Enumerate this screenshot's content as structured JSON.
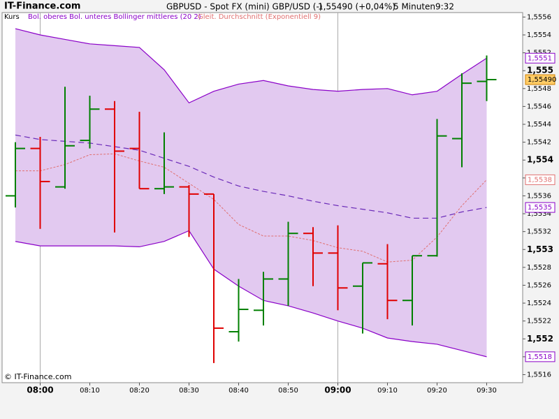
{
  "chart_data": {
    "type": "ohlc",
    "brand": "IT-Finance.com",
    "title": "GBPUSD - Spot FX (mini) GBP/USD (-)",
    "last_quote": "1,55490 (+0,04%)",
    "interval": "5 Minuten",
    "time": "9:32",
    "watermark": "© IT-Finance.com",
    "categories": [
      null,
      "08:00",
      null,
      "08:10",
      null,
      "08:20",
      null,
      "08:30",
      null,
      "08:40",
      null,
      "08:50",
      null,
      "09:00",
      null,
      "09:10",
      null,
      "09:20",
      null,
      "09:30"
    ],
    "price": {
      "name": "Kurs",
      "up_color": "#008000",
      "down_color": "#e00000",
      "open": [
        1.5536,
        1.55413,
        1.5537,
        1.55422,
        1.55457,
        1.55413,
        1.55368,
        1.5537,
        1.55362,
        1.55208,
        1.55232,
        1.55267,
        1.55318,
        1.55296,
        1.55259,
        1.55284,
        1.55243,
        1.55293,
        1.55424,
        1.55488
      ],
      "high": [
        1.5542,
        1.55426,
        1.55482,
        1.55472,
        1.55466,
        1.55454,
        1.55431,
        1.55372,
        1.55362,
        1.55267,
        1.55275,
        1.55331,
        1.55325,
        1.55327,
        1.55285,
        1.55306,
        1.55293,
        1.55446,
        1.55497,
        1.55517
      ],
      "low": [
        1.55347,
        1.55323,
        1.55368,
        1.55413,
        1.55319,
        1.55368,
        1.55362,
        1.55314,
        1.55173,
        1.55197,
        1.55215,
        1.55237,
        1.55259,
        1.55232,
        1.55206,
        1.55222,
        1.55215,
        1.55292,
        1.55392,
        1.55466
      ],
      "close": [
        1.55413,
        1.55376,
        1.55416,
        1.55457,
        1.5541,
        1.55368,
        1.5537,
        1.55362,
        1.55212,
        1.55233,
        1.55267,
        1.55318,
        1.55296,
        1.55257,
        1.55285,
        1.55243,
        1.55293,
        1.55427,
        1.55486,
        1.5549
      ],
      "value_labels": [
        null,
        null,
        null,
        null,
        null,
        null,
        null,
        null,
        null,
        null,
        null,
        null,
        null,
        null,
        null,
        null,
        null,
        null,
        null,
        "1,55490"
      ]
    },
    "bollinger": {
      "name": "Bol. oberes Bol. unteres Bollinger mittleres (20 2)",
      "color": "#8a00c8",
      "middle_color": "#6a2ab8",
      "fill": "#e2c9f0",
      "upper": [
        1.55547,
        1.5554,
        1.55535,
        1.5553,
        1.55528,
        1.55526,
        1.55501,
        1.55464,
        1.55477,
        1.55485,
        1.55489,
        1.55483,
        1.55479,
        1.55477,
        1.55479,
        1.5548,
        1.55473,
        1.55477,
        1.55496,
        1.55514
      ],
      "upper_labels": [
        null,
        null,
        null,
        null,
        null,
        null,
        null,
        null,
        null,
        null,
        null,
        null,
        null,
        null,
        null,
        null,
        null,
        null,
        null,
        "1,5551"
      ],
      "lower": [
        1.55309,
        1.55304,
        1.55304,
        1.55304,
        1.55304,
        1.55303,
        1.55309,
        1.55321,
        1.55278,
        1.55259,
        1.55243,
        1.55237,
        1.55229,
        1.5522,
        1.55212,
        1.55201,
        1.55197,
        1.55194,
        1.55187,
        1.5518
      ],
      "lower_labels": [
        null,
        null,
        null,
        null,
        null,
        null,
        null,
        null,
        null,
        null,
        null,
        null,
        null,
        null,
        null,
        null,
        null,
        null,
        null,
        "1,5518"
      ],
      "middle": [
        1.55428,
        1.55423,
        1.55421,
        1.55419,
        1.55415,
        1.55411,
        1.55402,
        1.55393,
        1.55381,
        1.55371,
        1.55365,
        1.5536,
        1.55354,
        1.55349,
        1.55345,
        1.55341,
        1.55335,
        1.55335,
        1.55342,
        1.55347
      ],
      "middle_labels": [
        null,
        null,
        null,
        null,
        null,
        null,
        null,
        null,
        null,
        null,
        null,
        null,
        null,
        null,
        null,
        null,
        null,
        null,
        null,
        "1,5535"
      ]
    },
    "ema": {
      "name": "Gleit. Durchschnitt (Exponentiell 9)",
      "color": "#e07070",
      "values": [
        1.55388,
        1.55388,
        1.55395,
        1.55406,
        1.55407,
        1.55399,
        1.55392,
        1.55374,
        1.55356,
        1.55328,
        1.55315,
        1.55315,
        1.5531,
        1.55302,
        1.55298,
        1.55286,
        1.55288,
        1.55314,
        1.55349,
        1.55378
      ],
      "value_labels": [
        null,
        null,
        null,
        null,
        null,
        null,
        null,
        null,
        null,
        null,
        null,
        null,
        null,
        null,
        null,
        null,
        null,
        null,
        null,
        "1,5538"
      ]
    },
    "ylim": [
      1.55151,
      1.55565
    ],
    "yticks": [
      {
        "value": 1.5516,
        "label": "1,5516"
      },
      {
        "value": 1.5518,
        "label": "1,5518"
      },
      {
        "value": 1.552,
        "label": "1,552"
      },
      {
        "value": 1.5522,
        "label": "1,5522"
      },
      {
        "value": 1.5524,
        "label": "1,5524"
      },
      {
        "value": 1.5526,
        "label": "1,5526"
      },
      {
        "value": 1.5528,
        "label": "1,5528"
      },
      {
        "value": 1.553,
        "label": "1,553"
      },
      {
        "value": 1.5532,
        "label": "1,5532"
      },
      {
        "value": 1.5534,
        "label": "1,5534"
      },
      {
        "value": 1.5536,
        "label": "1,5536"
      },
      {
        "value": 1.5538,
        "label": "1,5538"
      },
      {
        "value": 1.554,
        "label": "1,554"
      },
      {
        "value": 1.5542,
        "label": "1,5542"
      },
      {
        "value": 1.5544,
        "label": "1,5544"
      },
      {
        "value": 1.5546,
        "label": "1,5546"
      },
      {
        "value": 1.5548,
        "label": "1,5548"
      },
      {
        "value": 1.555,
        "label": "1,555"
      },
      {
        "value": 1.5552,
        "label": "1,5552"
      },
      {
        "value": 1.5554,
        "label": "1,5554"
      },
      {
        "value": 1.5556,
        "label": "1,5556"
      }
    ],
    "axis_side": "right"
  }
}
